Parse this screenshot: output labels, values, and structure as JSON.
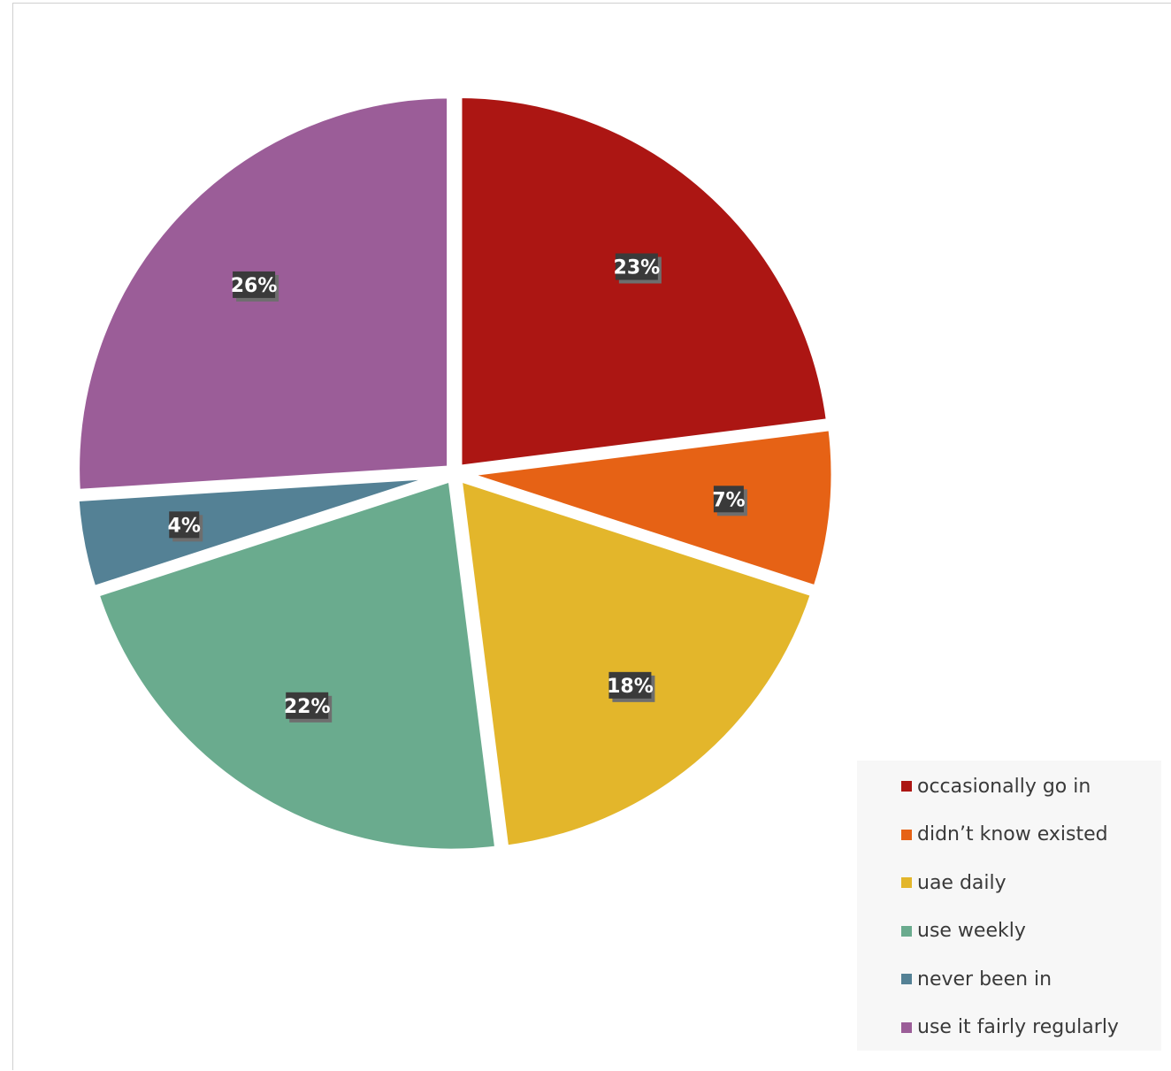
{
  "chart_data": {
    "type": "pie",
    "title": "",
    "categories": [
      "occasionally go in",
      "didn’t know existed",
      "uae daily",
      "use weekly",
      "never been in",
      "use it fairly regularly"
    ],
    "values": [
      23,
      7,
      18,
      22,
      4,
      26
    ],
    "data_labels": [
      "23%",
      "7%",
      "18%",
      "22%",
      "4%",
      "26%"
    ],
    "colors": [
      "#ac1613",
      "#e66215",
      "#e3b62b",
      "#6aab8e",
      "#548195",
      "#9b5d98"
    ],
    "start_angle_deg": 0,
    "direction": "clockwise",
    "legend_position": "bottom-right"
  }
}
